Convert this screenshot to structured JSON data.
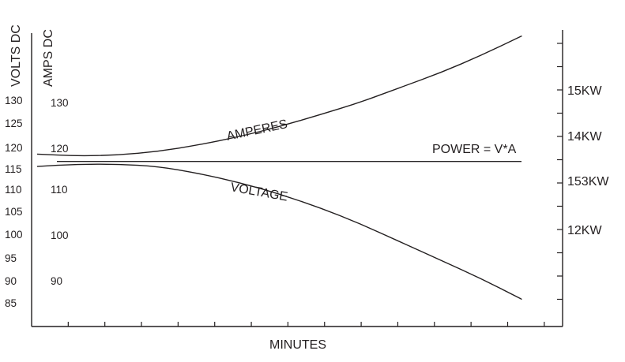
{
  "chart_data": {
    "type": "line",
    "title": "",
    "xlabel": "MINUTES",
    "ylabel_volts": "VOLTS DC",
    "ylabel_amps": "AMPS DC",
    "volts_ticks": [
      "130",
      "125",
      "120",
      "115",
      "110",
      "105",
      "100",
      "95",
      "90",
      "85"
    ],
    "amps_ticks": [
      "130",
      "120",
      "110",
      "100",
      "90"
    ],
    "power_ticks": [
      "15KW",
      "14KW",
      "153KW",
      "12KW"
    ],
    "x_minor_ticks": 14,
    "series": [
      {
        "name": "AMPERES",
        "points": [
          [
            0,
            118.2
          ],
          [
            1,
            117.8
          ],
          [
            2,
            118.0
          ],
          [
            3,
            118.8
          ],
          [
            4,
            120.2
          ],
          [
            5,
            122.0
          ],
          [
            6,
            124.2
          ],
          [
            7,
            126.8
          ],
          [
            8,
            129.5
          ],
          [
            9,
            132.8
          ],
          [
            10,
            136.0
          ],
          [
            11,
            139.8
          ],
          [
            12,
            144.0
          ]
        ]
      },
      {
        "name": "VOLTAGE",
        "points": [
          [
            0,
            115.5
          ],
          [
            1,
            116.0
          ],
          [
            2,
            116.0
          ],
          [
            3,
            115.5
          ],
          [
            4,
            114.0
          ],
          [
            5,
            112.0
          ],
          [
            6,
            109.5
          ],
          [
            7,
            106.5
          ],
          [
            8,
            103.0
          ],
          [
            9,
            99.0
          ],
          [
            10,
            95.0
          ],
          [
            11,
            91.0
          ],
          [
            12,
            86.5
          ]
        ]
      },
      {
        "name": "POWER = V*A",
        "points": [
          [
            0,
            116.6
          ],
          [
            12,
            116.6
          ]
        ]
      }
    ],
    "grid": false,
    "legend": "none"
  }
}
